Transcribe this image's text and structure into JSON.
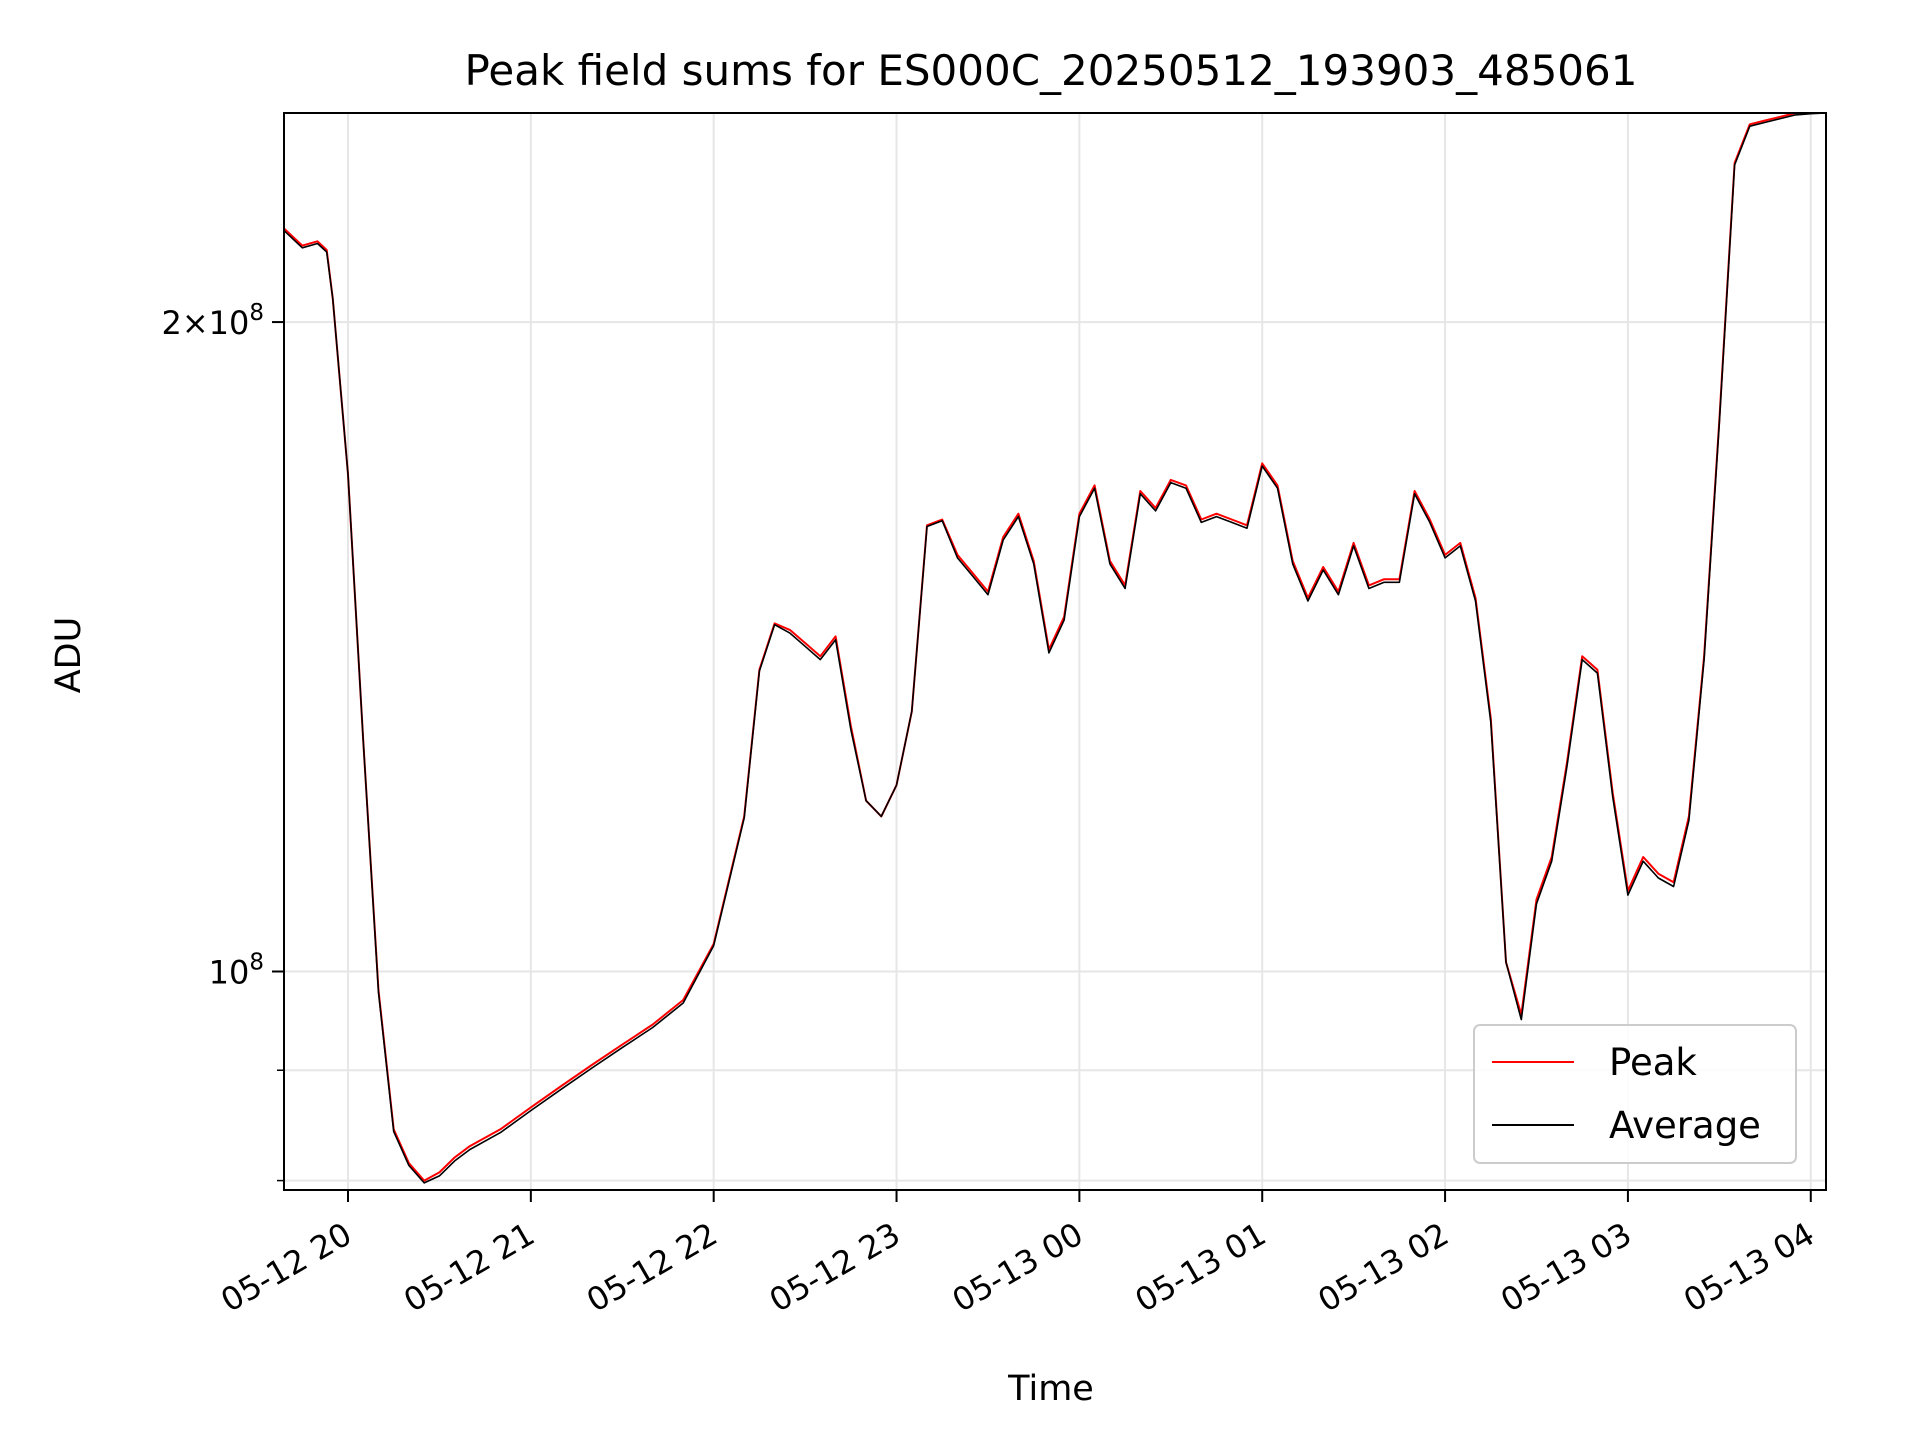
{
  "chart_data": {
    "type": "line",
    "title": "Peak field sums for ES000C_20250512_193903_485061",
    "xlabel": "Time",
    "ylabel": "ADU",
    "y_scale": "log",
    "xlim": [
      "05-12 19:39",
      "05-13 04:05"
    ],
    "ylim": [
      79200000,
      250000000
    ],
    "grid": true,
    "legend_position": "lower-right",
    "x_ticks": [
      "05-12 20",
      "05-12 21",
      "05-12 22",
      "05-12 23",
      "05-13 00",
      "05-13 01",
      "05-13 02",
      "05-13 03",
      "05-13 04"
    ],
    "x_tick_times": [
      "05-12 20:00",
      "05-12 21:00",
      "05-12 22:00",
      "05-12 23:00",
      "05-13 00:00",
      "05-13 01:00",
      "05-13 02:00",
      "05-13 03:00",
      "05-13 04:00"
    ],
    "y_ticks": [
      {
        "value": 100000000,
        "mant": "",
        "exp": "8",
        "label": "10"
      },
      {
        "value": 200000000,
        "mant": "2",
        "exp": "8",
        "label": "10"
      }
    ],
    "y_minor_ticks": [
      80000000,
      90000000
    ],
    "colors": {
      "peak": "#ff0000",
      "average": "#000000"
    },
    "x": [
      "05-12 19:39",
      "05-12 19:45",
      "05-12 19:50",
      "05-12 19:53",
      "05-12 19:55",
      "05-12 20:00",
      "05-12 20:05",
      "05-12 20:10",
      "05-12 20:15",
      "05-12 20:20",
      "05-12 20:25",
      "05-12 20:30",
      "05-12 20:35",
      "05-12 20:40",
      "05-12 20:50",
      "05-12 21:00",
      "05-12 21:10",
      "05-12 21:20",
      "05-12 21:30",
      "05-12 21:40",
      "05-12 21:50",
      "05-12 22:00",
      "05-12 22:10",
      "05-12 22:15",
      "05-12 22:20",
      "05-12 22:25",
      "05-12 22:30",
      "05-12 22:35",
      "05-12 22:40",
      "05-12 22:45",
      "05-12 22:50",
      "05-12 22:55",
      "05-12 23:00",
      "05-12 23:05",
      "05-12 23:10",
      "05-12 23:15",
      "05-12 23:20",
      "05-12 23:25",
      "05-12 23:30",
      "05-12 23:35",
      "05-12 23:40",
      "05-12 23:45",
      "05-12 23:50",
      "05-12 23:55",
      "05-13 00:00",
      "05-13 00:05",
      "05-13 00:10",
      "05-13 00:15",
      "05-13 00:20",
      "05-13 00:25",
      "05-13 00:30",
      "05-13 00:35",
      "05-13 00:40",
      "05-13 00:45",
      "05-13 00:50",
      "05-13 00:55",
      "05-13 01:00",
      "05-13 01:05",
      "05-13 01:10",
      "05-13 01:15",
      "05-13 01:20",
      "05-13 01:25",
      "05-13 01:30",
      "05-13 01:35",
      "05-13 01:40",
      "05-13 01:45",
      "05-13 01:50",
      "05-13 01:55",
      "05-13 02:00",
      "05-13 02:05",
      "05-13 02:10",
      "05-13 02:15",
      "05-13 02:20",
      "05-13 02:25",
      "05-13 02:30",
      "05-13 02:35",
      "05-13 02:40",
      "05-13 02:45",
      "05-13 02:50",
      "05-13 02:55",
      "05-13 03:00",
      "05-13 03:05",
      "05-13 03:10",
      "05-13 03:15",
      "05-13 03:20",
      "05-13 03:25",
      "05-13 03:30",
      "05-13 03:35",
      "05-13 03:40",
      "05-13 03:45",
      "05-13 03:50",
      "05-13 03:55",
      "05-13 04:00",
      "05-13 04:05"
    ],
    "series": [
      {
        "name": "Peak",
        "values": [
          221000000,
          217000000,
          218000000,
          216000000,
          205000000,
          170000000,
          128000000,
          98000000,
          84500000,
          81500000,
          80000000,
          80700000,
          82000000,
          83000000,
          84500000,
          86500000,
          88500000,
          90500000,
          92500000,
          94500000,
          97000000,
          103000000,
          118000000,
          138000000,
          145000000,
          144000000,
          142000000,
          140000000,
          143000000,
          130000000,
          120000000,
          118000000,
          122000000,
          132000000,
          161000000,
          162000000,
          156000000,
          153000000,
          150000000,
          159000000,
          163000000,
          155000000,
          141000000,
          146000000,
          163000000,
          168000000,
          155000000,
          151000000,
          167000000,
          164000000,
          169000000,
          168000000,
          162000000,
          163000000,
          162000000,
          161000000,
          172000000,
          168000000,
          155000000,
          149000000,
          154000000,
          150000000,
          158000000,
          151000000,
          152000000,
          152000000,
          167000000,
          162000000,
          156000000,
          158000000,
          149000000,
          131000000,
          101000000,
          95500000,
          108000000,
          113000000,
          125000000,
          140000000,
          138000000,
          121000000,
          109000000,
          113000000,
          111000000,
          110000000,
          118000000,
          140000000,
          180000000,
          237000000,
          247000000,
          248000000,
          249000000,
          250000000,
          250000000,
          250000000
        ]
      },
      {
        "name": "Average",
        "values": [
          220500000,
          216500000,
          217500000,
          215500000,
          205000000,
          170000000,
          128000000,
          97800000,
          84300000,
          81300000,
          79800000,
          80400000,
          81700000,
          82700000,
          84200000,
          86200000,
          88200000,
          90200000,
          92200000,
          94200000,
          96700000,
          102800000,
          117800000,
          137800000,
          144800000,
          143500000,
          141500000,
          139500000,
          142500000,
          129500000,
          120000000,
          118000000,
          122000000,
          132000000,
          160800000,
          161800000,
          155500000,
          152500000,
          149500000,
          158500000,
          162500000,
          154500000,
          140500000,
          145500000,
          162500000,
          167500000,
          154500000,
          150500000,
          166500000,
          163500000,
          168500000,
          167500000,
          161500000,
          162500000,
          161500000,
          160500000,
          171500000,
          167500000,
          154500000,
          148500000,
          153500000,
          149500000,
          157500000,
          150500000,
          151500000,
          151500000,
          166500000,
          161500000,
          155500000,
          157500000,
          148500000,
          130500000,
          101000000,
          95000000,
          107500000,
          112500000,
          124500000,
          139500000,
          137500000,
          120500000,
          108500000,
          112500000,
          110500000,
          109500000,
          117500000,
          139500000,
          179500000,
          236500000,
          246500000,
          247500000,
          248500000,
          249500000,
          249800000,
          250000000
        ]
      }
    ]
  }
}
